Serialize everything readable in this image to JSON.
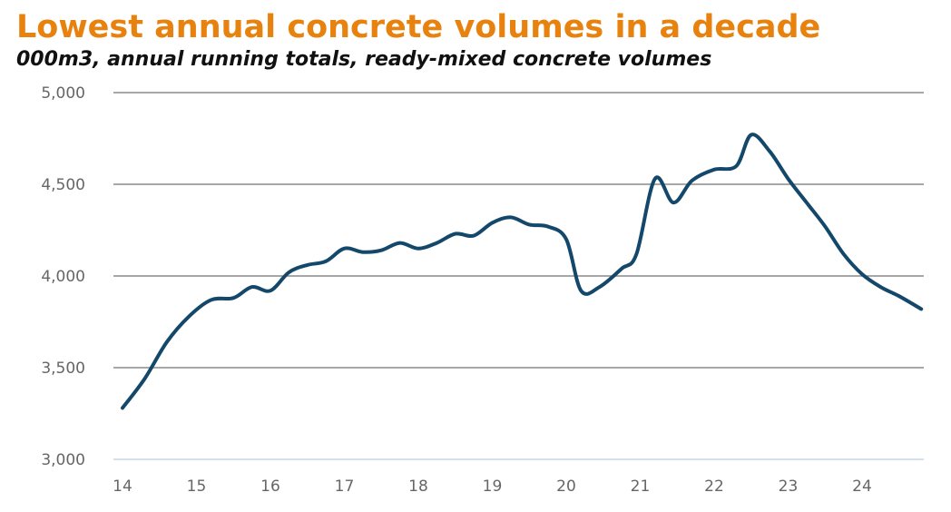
{
  "chart_data": {
    "type": "line",
    "title": "Lowest annual concrete volumes in a decade",
    "subtitle": "000m3, annual running totals, ready-mixed concrete volumes",
    "xlabel": "",
    "ylabel": "",
    "x_ticks": [
      "14",
      "15",
      "16",
      "17",
      "18",
      "19",
      "20",
      "21",
      "22",
      "23",
      "24"
    ],
    "y_ticks": [
      "3,000",
      "3,500",
      "4,000",
      "4,500",
      "5,000"
    ],
    "xlim": [
      14,
      24.8
    ],
    "ylim": [
      3000,
      5000
    ],
    "grid": true,
    "series": [
      {
        "name": "Ready-mixed concrete volumes",
        "x": [
          14.0,
          14.3,
          14.6,
          14.9,
          15.2,
          15.5,
          15.75,
          16.0,
          16.25,
          16.5,
          16.75,
          17.0,
          17.25,
          17.5,
          17.75,
          18.0,
          18.25,
          18.5,
          18.75,
          19.0,
          19.25,
          19.5,
          19.75,
          20.0,
          20.2,
          20.45,
          20.75,
          20.95,
          21.2,
          21.45,
          21.7,
          22.0,
          22.3,
          22.5,
          22.75,
          23.0,
          23.25,
          23.5,
          23.75,
          24.0,
          24.25,
          24.5,
          24.8
        ],
        "values": [
          3280,
          3440,
          3640,
          3780,
          3870,
          3880,
          3940,
          3920,
          4020,
          4060,
          4080,
          4150,
          4130,
          4140,
          4180,
          4150,
          4180,
          4230,
          4220,
          4290,
          4320,
          4280,
          4270,
          4200,
          3920,
          3940,
          4040,
          4120,
          4530,
          4400,
          4520,
          4580,
          4600,
          4770,
          4680,
          4530,
          4400,
          4270,
          4120,
          4010,
          3940,
          3890,
          3820
        ]
      }
    ],
    "colors": {
      "title": "#E8820E",
      "line": "#14486B",
      "grid": "#8A8A8A",
      "baseline": "#C5D5EA",
      "tick_text": "#666666"
    }
  }
}
